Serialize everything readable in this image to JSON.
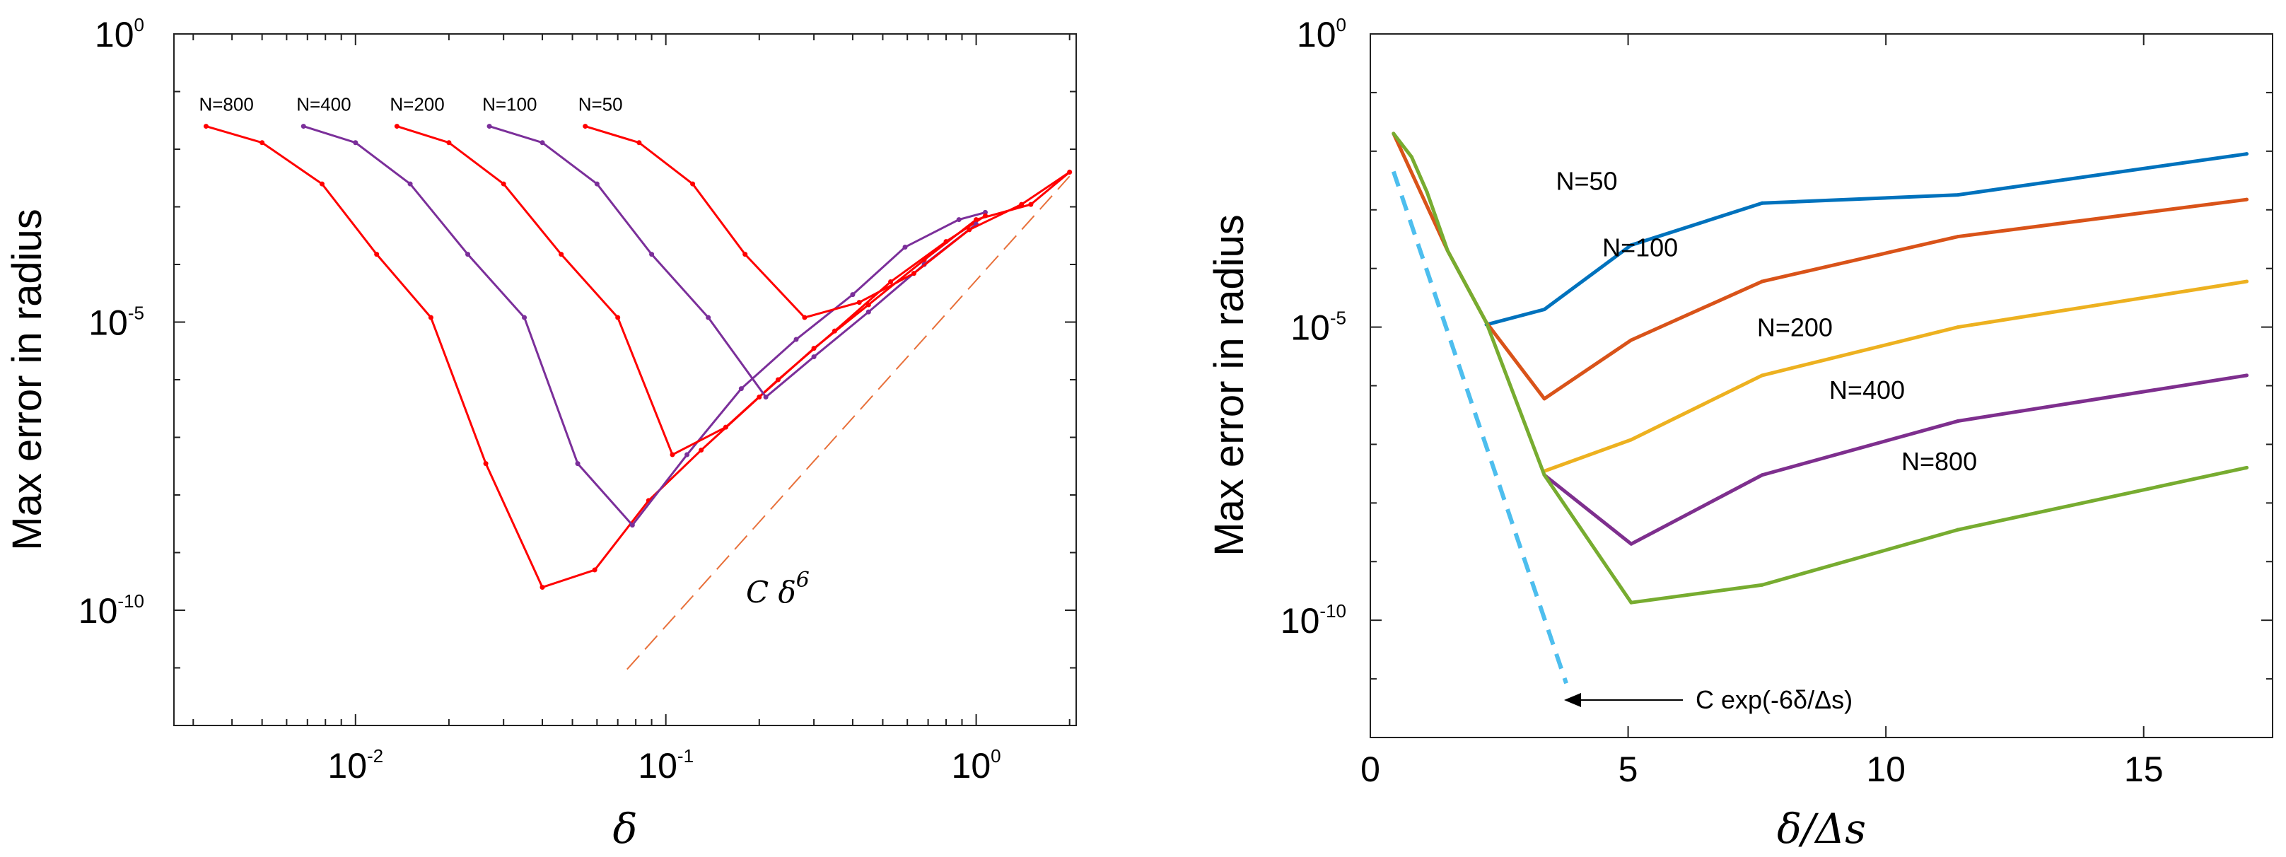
{
  "chart_data": [
    {
      "type": "line",
      "scale": "loglog",
      "xlabel": "δ",
      "ylabel": "Max error in radius",
      "xlim": [
        0.0026,
        2.1
      ],
      "ylim": [
        1e-12,
        1
      ],
      "x_ticks": [
        {
          "value": 0.01,
          "base": "10",
          "exp": "-2"
        },
        {
          "value": 0.1,
          "base": "10",
          "exp": "-1"
        },
        {
          "value": 1,
          "base": "10",
          "exp": "0"
        }
      ],
      "y_ticks": [
        {
          "value": 1e-10,
          "base": "10",
          "exp": "-10"
        },
        {
          "value": 1e-05,
          "base": "10",
          "exp": "-5"
        },
        {
          "value": 1,
          "base": "10",
          "exp": "0"
        }
      ],
      "series": [
        {
          "name": "N=800",
          "label": "N=800",
          "color": "#ff0000",
          "x": [
            0.0033,
            0.005,
            0.0078,
            0.0117,
            0.0175,
            0.0263,
            0.04,
            0.059,
            0.088,
            0.13,
            0.2,
            0.3,
            0.45,
            0.68,
            1.0,
            1.5,
            2.0
          ],
          "y": [
            0.025,
            0.013,
            0.0025,
            0.00015,
            1.2e-05,
            3.5e-08,
            2.5e-10,
            5e-10,
            8e-09,
            6e-08,
            5e-07,
            3.5e-06,
            2e-05,
            0.00012,
            0.0006,
            0.0011,
            0.004
          ]
        },
        {
          "name": "N=400",
          "label": "N=400",
          "color": "#7b2f9a",
          "x": [
            0.0068,
            0.01,
            0.015,
            0.023,
            0.035,
            0.052,
            0.078,
            0.117,
            0.175,
            0.263,
            0.4,
            0.59,
            0.88,
            1.07
          ],
          "y": [
            0.025,
            0.013,
            0.0025,
            0.00015,
            1.2e-05,
            3.5e-08,
            3e-09,
            5e-08,
            7e-07,
            5e-06,
            3e-05,
            0.0002,
            0.0006,
            0.0008
          ]
        },
        {
          "name": "N=200",
          "label": "N=200",
          "color": "#ff0000",
          "x": [
            0.0136,
            0.02,
            0.03,
            0.046,
            0.07,
            0.105,
            0.156,
            0.23,
            0.35,
            0.53,
            0.8,
            1.07
          ],
          "y": [
            0.025,
            0.013,
            0.0025,
            0.00015,
            1.2e-05,
            5e-08,
            1.5e-07,
            1e-06,
            7e-06,
            5e-05,
            0.00025,
            0.0007
          ]
        },
        {
          "name": "N=100",
          "label": "N=100",
          "color": "#7b2f9a",
          "x": [
            0.027,
            0.04,
            0.06,
            0.09,
            0.137,
            0.21,
            0.3,
            0.45,
            0.68,
            1.0
          ],
          "y": [
            0.025,
            0.013,
            0.0025,
            0.00015,
            1.2e-05,
            5e-07,
            2.5e-06,
            1.5e-05,
            0.0001,
            0.0005
          ]
        },
        {
          "name": "N=50",
          "label": "N=50",
          "color": "#ff0000",
          "x": [
            0.055,
            0.082,
            0.122,
            0.18,
            0.28,
            0.42,
            0.63,
            0.95,
            1.4,
            2.0
          ],
          "y": [
            0.025,
            0.013,
            0.0025,
            0.00015,
            1.2e-05,
            2.2e-05,
            7e-05,
            0.0004,
            0.0011,
            0.004
          ]
        }
      ],
      "reference": {
        "name": "C δ^6",
        "label_main": "C δ",
        "label_sup": "6",
        "color": "#e8703a",
        "style": "dashed",
        "exponent": 6,
        "x_range": [
          0.075,
          2.0
        ],
        "y_at_x1": 5.3e-05
      }
    },
    {
      "type": "line",
      "scale": "semilogy",
      "xlabel": "δ/Δs",
      "ylabel": "Max error in radius",
      "xlim": [
        0,
        17.5
      ],
      "ylim": [
        1e-12,
        1
      ],
      "x_ticks": [
        0,
        5,
        10,
        15
      ],
      "y_ticks": [
        {
          "value": 1e-10,
          "base": "10",
          "exp": "-10"
        },
        {
          "value": 1e-05,
          "base": "10",
          "exp": "-5"
        },
        {
          "value": 1,
          "base": "10",
          "exp": "0"
        }
      ],
      "series": [
        {
          "name": "N=50",
          "label": "N=50",
          "color": "#0072bd",
          "x": [
            2.25,
            3.375,
            5.06,
            7.6,
            11.4,
            17.0
          ],
          "y": [
            1.1e-05,
            2e-05,
            0.00025,
            0.0013,
            0.0018,
            0.009
          ]
        },
        {
          "name": "N=100",
          "label": "N=100",
          "color": "#d95319",
          "x": [
            0.45,
            1.5,
            2.25,
            3.375,
            5.06,
            7.6,
            11.4,
            17.0
          ],
          "y": [
            0.02,
            0.0002,
            1.2e-05,
            6e-07,
            6e-06,
            6e-05,
            0.00035,
            0.0015
          ]
        },
        {
          "name": "N=200",
          "label": "N=200",
          "color": "#edb120",
          "x": [
            3.375,
            5.06,
            7.6,
            11.4,
            17.0
          ],
          "y": [
            3.5e-08,
            1.2e-07,
            1.5e-06,
            1e-05,
            6e-05
          ]
        },
        {
          "name": "N=400",
          "label": "N=400",
          "color": "#7e2f8e",
          "x": [
            3.375,
            5.06,
            7.6,
            11.4,
            17.0
          ],
          "y": [
            3e-08,
            2e-09,
            3e-08,
            2.5e-07,
            1.5e-06
          ]
        },
        {
          "name": "N=800",
          "label": "N=800",
          "color": "#77ac30",
          "x": [
            0.45,
            0.8,
            1.1,
            1.5,
            2.25,
            3.375,
            5.06,
            7.6,
            11.4,
            17.0
          ],
          "y": [
            0.02,
            0.008,
            0.002,
            0.0002,
            1.2e-05,
            3e-08,
            2e-10,
            4e-10,
            3.5e-09,
            4e-08
          ]
        }
      ],
      "reference": {
        "name": "C exp(-6δ/Δs)",
        "label": "C exp(-6δ/Δs)",
        "color": "#4dbeee",
        "style": "dashed",
        "x_range": [
          0.45,
          3.8
        ],
        "y_at_x0": 0.0045
      }
    }
  ]
}
